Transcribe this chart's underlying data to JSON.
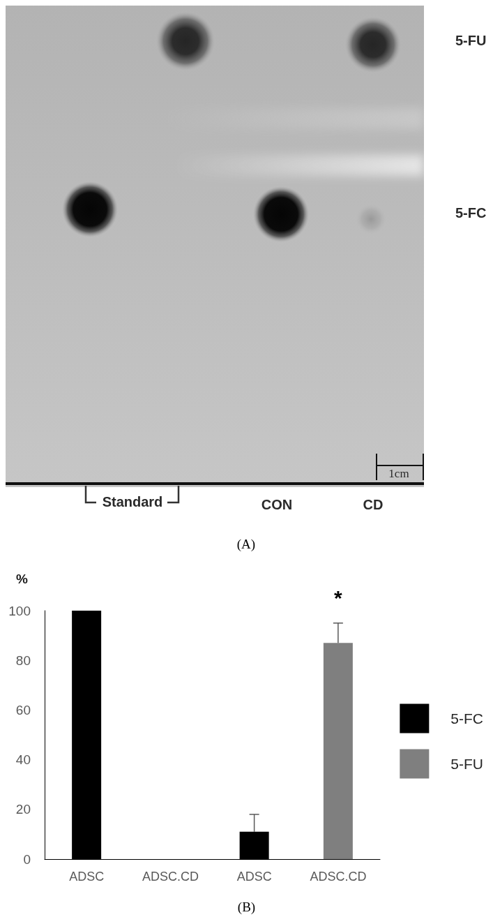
{
  "chart_data": [
    {
      "type": "other",
      "title": "(A)",
      "annotations": [
        "5-FU",
        "5-FC",
        "Standard",
        "CON",
        "CD",
        "1cm"
      ]
    },
    {
      "type": "bar",
      "title": "(B)",
      "ylabel": "%",
      "categories": [
        "ADSC",
        "ADSC.CD",
        "ADSC",
        "ADSC.CD"
      ],
      "series": [
        {
          "name": "5-FC",
          "color": "#000000",
          "values": [
            100,
            null,
            11,
            null
          ],
          "errors": [
            null,
            null,
            [
              11,
              18
            ],
            null
          ]
        },
        {
          "name": "5-FU",
          "color": "#7f7f7f",
          "values": [
            null,
            null,
            null,
            87
          ],
          "errors": [
            null,
            null,
            null,
            [
              87,
              95
            ]
          ]
        }
      ],
      "ylim": [
        0,
        100
      ],
      "yticks": [
        0,
        20,
        40,
        60,
        80,
        100
      ],
      "grid": false,
      "legend": "right",
      "annotations": [
        "*"
      ]
    }
  ]
}
